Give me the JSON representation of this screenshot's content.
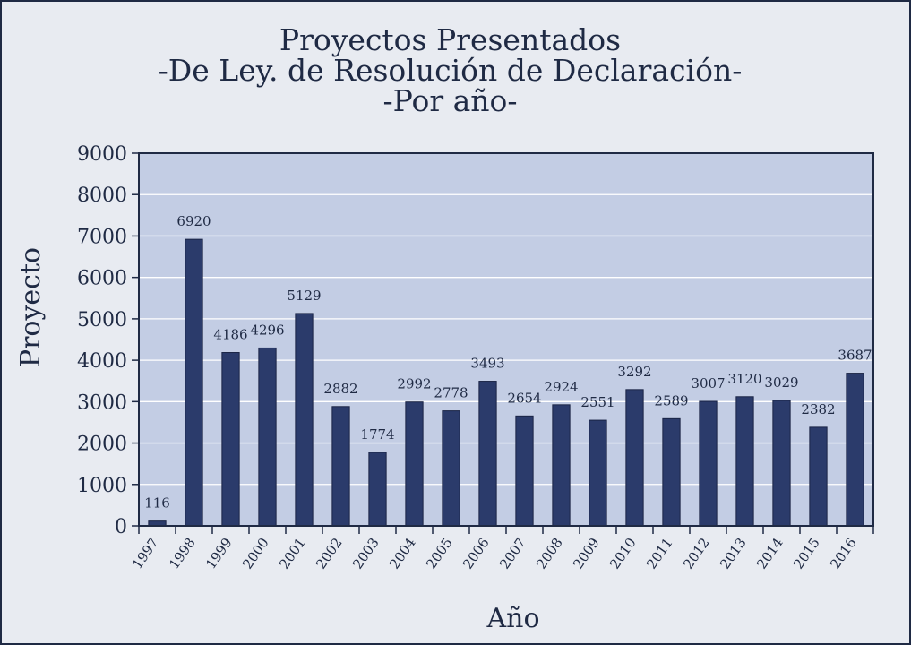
{
  "chart_data": {
    "type": "bar",
    "title": [
      "Proyectos Presentados",
      "-De Ley. de Resolución de Declaración-",
      "-Por año-"
    ],
    "xlabel": "Año",
    "ylabel": "Proyecto",
    "categories": [
      "1997",
      "1998",
      "1999",
      "2000",
      "2001",
      "2002",
      "2003",
      "2004",
      "2005",
      "2006",
      "2007",
      "2008",
      "2009",
      "2010",
      "2011",
      "2012",
      "2013",
      "2014",
      "2015",
      "2016"
    ],
    "values": [
      116,
      6920,
      4186,
      4296,
      5129,
      2882,
      1774,
      2992,
      2778,
      3493,
      2654,
      2924,
      2551,
      3292,
      2589,
      3007,
      3120,
      3029,
      2382,
      3687
    ],
    "ylim": [
      0,
      9000
    ],
    "yticks": [
      0,
      1000,
      2000,
      3000,
      4000,
      5000,
      6000,
      7000,
      8000,
      9000
    ],
    "grid": true,
    "data_labels": true,
    "colors": {
      "bar": "#2b3b6b",
      "plot_bg": "#c3cde4",
      "grid": "#ffffff",
      "text": "#1f2a44",
      "page_bg": "#e8ebf1"
    }
  }
}
